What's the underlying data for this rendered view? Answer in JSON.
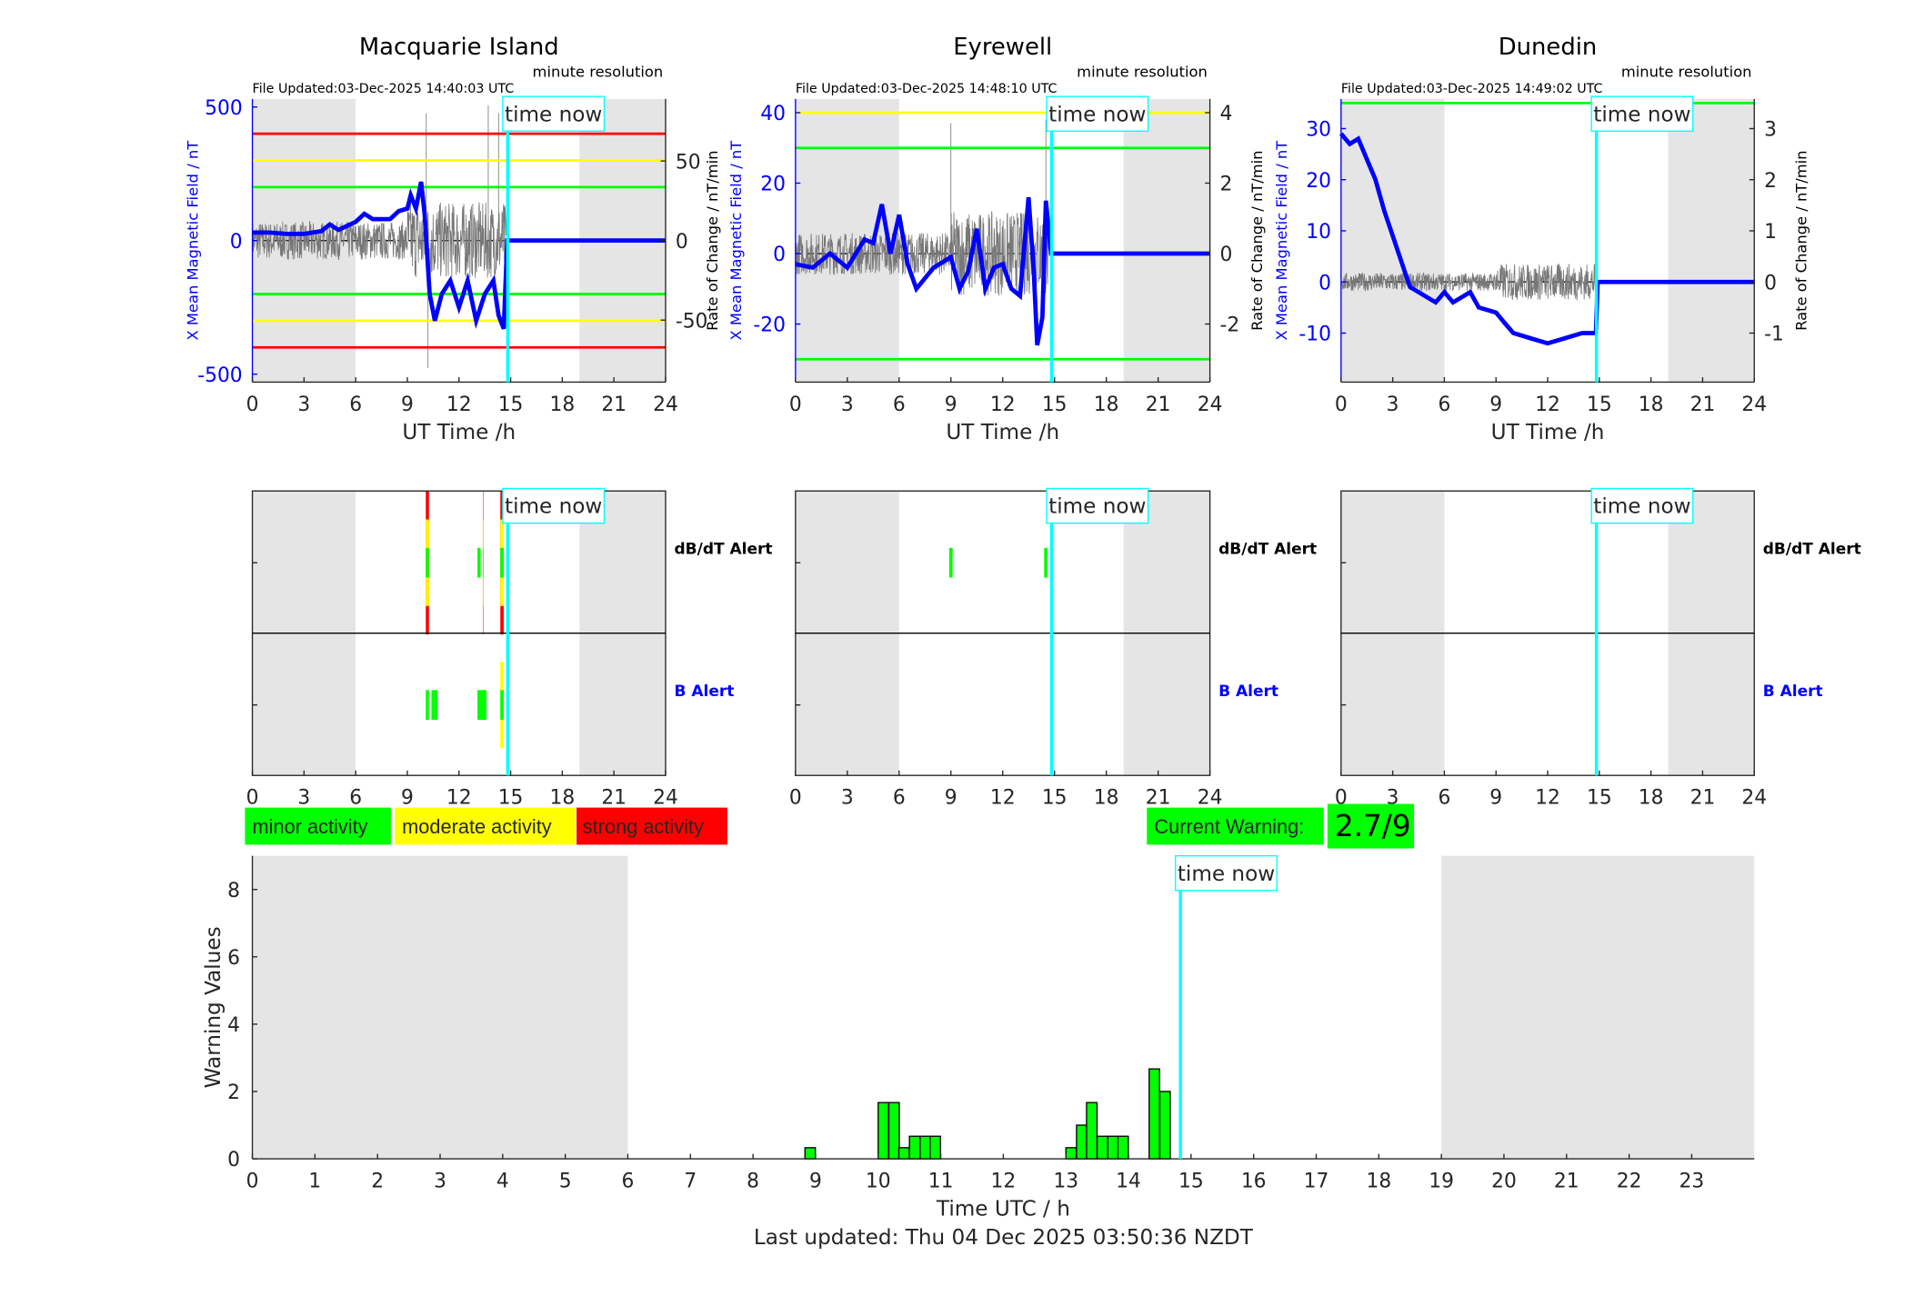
{
  "chart_data": [
    {
      "type": "line",
      "title": "Macquarie Island",
      "file_updated": "File Updated:03-Dec-2025 14:40:03 UTC",
      "resolution": "minute resolution",
      "xlabel": "UT Time /h",
      "ylabel": "X Mean Magnetic Field / nT",
      "ylabel_right": "Rate of Change / nT/min",
      "xlim": [
        0,
        24
      ],
      "xticks": [
        0,
        3,
        6,
        9,
        12,
        15,
        18,
        21,
        24
      ],
      "ylim": [
        -530,
        530
      ],
      "yticks": [
        -500,
        0,
        500
      ],
      "ylim_right": [
        -89,
        89
      ],
      "yticks_right": [
        -50,
        0,
        50
      ],
      "night_shading_h": [
        [
          0,
          6
        ],
        [
          19,
          24
        ]
      ],
      "thresholds": [
        {
          "value": 400,
          "color": "#ff0000"
        },
        {
          "value": -400,
          "color": "#ff0000"
        },
        {
          "value": 300,
          "color": "#ffff00"
        },
        {
          "value": -300,
          "color": "#ffff00"
        },
        {
          "value": 200,
          "color": "#00ff00"
        },
        {
          "value": -200,
          "color": "#00ff00"
        }
      ],
      "time_now_h": 14.83,
      "time_now_label": "time now",
      "series": [
        {
          "name": "X mean field",
          "color": "#0000ff",
          "points": [
            [
              0,
              30
            ],
            [
              1,
              30
            ],
            [
              2,
              25
            ],
            [
              3,
              25
            ],
            [
              4,
              35
            ],
            [
              4.5,
              60
            ],
            [
              5,
              40
            ],
            [
              6,
              70
            ],
            [
              6.5,
              100
            ],
            [
              7,
              80
            ],
            [
              8,
              80
            ],
            [
              8.5,
              110
            ],
            [
              9,
              120
            ],
            [
              9.2,
              170
            ],
            [
              9.5,
              120
            ],
            [
              9.8,
              220
            ],
            [
              10,
              100
            ],
            [
              10.3,
              -200
            ],
            [
              10.6,
              -300
            ],
            [
              11,
              -200
            ],
            [
              11.5,
              -150
            ],
            [
              12,
              -250
            ],
            [
              12.5,
              -150
            ],
            [
              13,
              -300
            ],
            [
              13.5,
              -200
            ],
            [
              14,
              -150
            ],
            [
              14.3,
              -280
            ],
            [
              14.6,
              -330
            ],
            [
              14.8,
              0
            ],
            [
              24,
              0
            ]
          ]
        }
      ],
      "rate_noise_amplitude": 12,
      "rate_spikes": [
        [
          10.1,
          80
        ],
        [
          10.2,
          -80
        ],
        [
          13.7,
          85
        ],
        [
          14.3,
          80
        ]
      ]
    },
    {
      "type": "line",
      "title": "Eyrewell",
      "file_updated": "File Updated:03-Dec-2025 14:48:10 UTC",
      "resolution": "minute resolution",
      "xlabel": "UT Time /h",
      "ylabel": "X Mean Magnetic Field / nT",
      "ylabel_right": "Rate of Change / nT/min",
      "xlim": [
        0,
        24
      ],
      "xticks": [
        0,
        3,
        6,
        9,
        12,
        15,
        18,
        21,
        24
      ],
      "ylim": [
        -36.5,
        43.9
      ],
      "yticks": [
        -20,
        0,
        20,
        40
      ],
      "ylim_right": [
        -3.65,
        4.39
      ],
      "yticks_right": [
        -2,
        0,
        2,
        4
      ],
      "night_shading_h": [
        [
          0,
          6
        ],
        [
          19,
          24
        ]
      ],
      "thresholds": [
        {
          "value": 40,
          "color": "#ffff00"
        },
        {
          "value": 30,
          "color": "#00ff00"
        },
        {
          "value": -30,
          "color": "#00ff00"
        }
      ],
      "time_now_h": 14.83,
      "time_now_label": "time now",
      "series": [
        {
          "name": "X mean field",
          "color": "#0000ff",
          "points": [
            [
              0,
              -3
            ],
            [
              1,
              -4
            ],
            [
              2,
              0
            ],
            [
              3,
              -4
            ],
            [
              4,
              4
            ],
            [
              4.5,
              3
            ],
            [
              5,
              14
            ],
            [
              5.5,
              0
            ],
            [
              6,
              11
            ],
            [
              6.5,
              -3
            ],
            [
              7,
              -10
            ],
            [
              8,
              -4
            ],
            [
              9,
              -1
            ],
            [
              9.5,
              -10
            ],
            [
              10,
              -5
            ],
            [
              10.5,
              7
            ],
            [
              11,
              -10
            ],
            [
              11.5,
              -4
            ],
            [
              12,
              -3
            ],
            [
              12.5,
              -10
            ],
            [
              13,
              -12
            ],
            [
              13.5,
              16
            ],
            [
              13.8,
              -5
            ],
            [
              14,
              -26
            ],
            [
              14.3,
              -18
            ],
            [
              14.5,
              15
            ],
            [
              14.8,
              0
            ],
            [
              24,
              0
            ]
          ]
        }
      ],
      "rate_noise_amplitude": 0.6,
      "rate_spikes": [
        [
          9.0,
          3.7
        ],
        [
          14.5,
          3.8
        ]
      ]
    },
    {
      "type": "line",
      "title": "Dunedin",
      "file_updated": "File Updated:03-Dec-2025 14:49:02 UTC",
      "resolution": "minute resolution",
      "xlabel": "UT Time /h",
      "ylabel": "X Mean Magnetic Field / nT",
      "ylabel_right": "Rate of Change / nT/min",
      "xlim": [
        0,
        24
      ],
      "xticks": [
        0,
        3,
        6,
        9,
        12,
        15,
        18,
        21,
        24
      ],
      "ylim": [
        -19.6,
        35.8
      ],
      "yticks": [
        -10,
        0,
        10,
        20,
        30
      ],
      "ylim_right": [
        -1.96,
        3.58
      ],
      "yticks_right": [
        -1,
        0,
        1,
        2,
        3
      ],
      "night_shading_h": [
        [
          0,
          6
        ],
        [
          19,
          24
        ]
      ],
      "thresholds": [
        {
          "value": 35,
          "color": "#00ff00"
        }
      ],
      "time_now_h": 14.83,
      "time_now_label": "time now",
      "series": [
        {
          "name": "X mean field",
          "color": "#0000ff",
          "points": [
            [
              0,
              29
            ],
            [
              0.5,
              27
            ],
            [
              1,
              28
            ],
            [
              2,
              20
            ],
            [
              2.5,
              14
            ],
            [
              3,
              9
            ],
            [
              3.5,
              4
            ],
            [
              4,
              -1
            ],
            [
              5,
              -3
            ],
            [
              5.5,
              -4
            ],
            [
              6,
              -2
            ],
            [
              6.5,
              -4
            ],
            [
              7,
              -3
            ],
            [
              7.5,
              -2
            ],
            [
              8,
              -5
            ],
            [
              9,
              -6
            ],
            [
              9.5,
              -8
            ],
            [
              10,
              -10
            ],
            [
              11,
              -11
            ],
            [
              12,
              -12
            ],
            [
              13,
              -11
            ],
            [
              14,
              -10
            ],
            [
              14.8,
              -10
            ],
            [
              14.9,
              0
            ],
            [
              24,
              0
            ]
          ]
        }
      ],
      "rate_noise_amplitude": 0.18,
      "rate_spikes": []
    }
  ],
  "alerts": [
    {
      "dbdt_label": "dB/dT Alert",
      "b_label": "B Alert",
      "time_now_label": "time now",
      "dbdt": [
        [
          10.0,
          10.33,
          3
        ],
        [
          13.0,
          13.33,
          1
        ],
        [
          13.33,
          13.5,
          3
        ],
        [
          14.33,
          14.67,
          3
        ]
      ],
      "b": [
        [
          10.0,
          10.33,
          1
        ],
        [
          10.33,
          10.83,
          1
        ],
        [
          13.0,
          13.67,
          1
        ],
        [
          14.33,
          14.67,
          2
        ]
      ]
    },
    {
      "dbdt_label": "dB/dT Alert",
      "b_label": "B Alert",
      "time_now_label": "time now",
      "dbdt": [
        [
          8.83,
          9.17,
          1
        ],
        [
          14.33,
          14.67,
          1
        ]
      ],
      "b": []
    },
    {
      "dbdt_label": "dB/dT Alert",
      "b_label": "B Alert",
      "time_now_label": "time now",
      "dbdt": [],
      "b": []
    }
  ],
  "alert_xticks": [
    0,
    3,
    6,
    9,
    12,
    15,
    18,
    21,
    24
  ],
  "legend": {
    "minor": {
      "label": "minor activity",
      "color": "#00ff00"
    },
    "moderate": {
      "label": "moderate activity",
      "color": "#ffff00"
    },
    "strong": {
      "label": "strong activity",
      "color": "#ff0000"
    }
  },
  "current_warning": {
    "label": "Current Warning:",
    "value": "2.7/9"
  },
  "warning_chart": {
    "type": "bar",
    "xlabel": "Time UTC / h",
    "ylabel": "Warning Values",
    "xlim": [
      0,
      24
    ],
    "xticks": [
      0,
      1,
      2,
      3,
      4,
      5,
      6,
      7,
      8,
      9,
      10,
      11,
      12,
      13,
      14,
      15,
      16,
      17,
      18,
      19,
      20,
      21,
      22,
      23
    ],
    "ylim": [
      0,
      9
    ],
    "yticks": [
      0,
      2,
      4,
      6,
      8
    ],
    "bin_width_h": 0.1667,
    "bars": [
      [
        8.83,
        0.33
      ],
      [
        10.0,
        1.67
      ],
      [
        10.17,
        1.67
      ],
      [
        10.33,
        0.33
      ],
      [
        10.5,
        0.67
      ],
      [
        10.67,
        0.67
      ],
      [
        10.83,
        0.67
      ],
      [
        13.0,
        0.33
      ],
      [
        13.17,
        1.0
      ],
      [
        13.33,
        1.67
      ],
      [
        13.5,
        0.67
      ],
      [
        13.67,
        0.67
      ],
      [
        13.83,
        0.67
      ],
      [
        14.33,
        2.67
      ],
      [
        14.5,
        2.0
      ]
    ],
    "bar_color": "#00ff00",
    "time_now_h": 14.83,
    "time_now_label": "time now",
    "night_shading_h": [
      [
        0,
        6
      ],
      [
        19,
        24
      ]
    ]
  },
  "footer": {
    "last_updated": "Last updated: Thu 04 Dec 2025 03:50:36 NZDT"
  }
}
